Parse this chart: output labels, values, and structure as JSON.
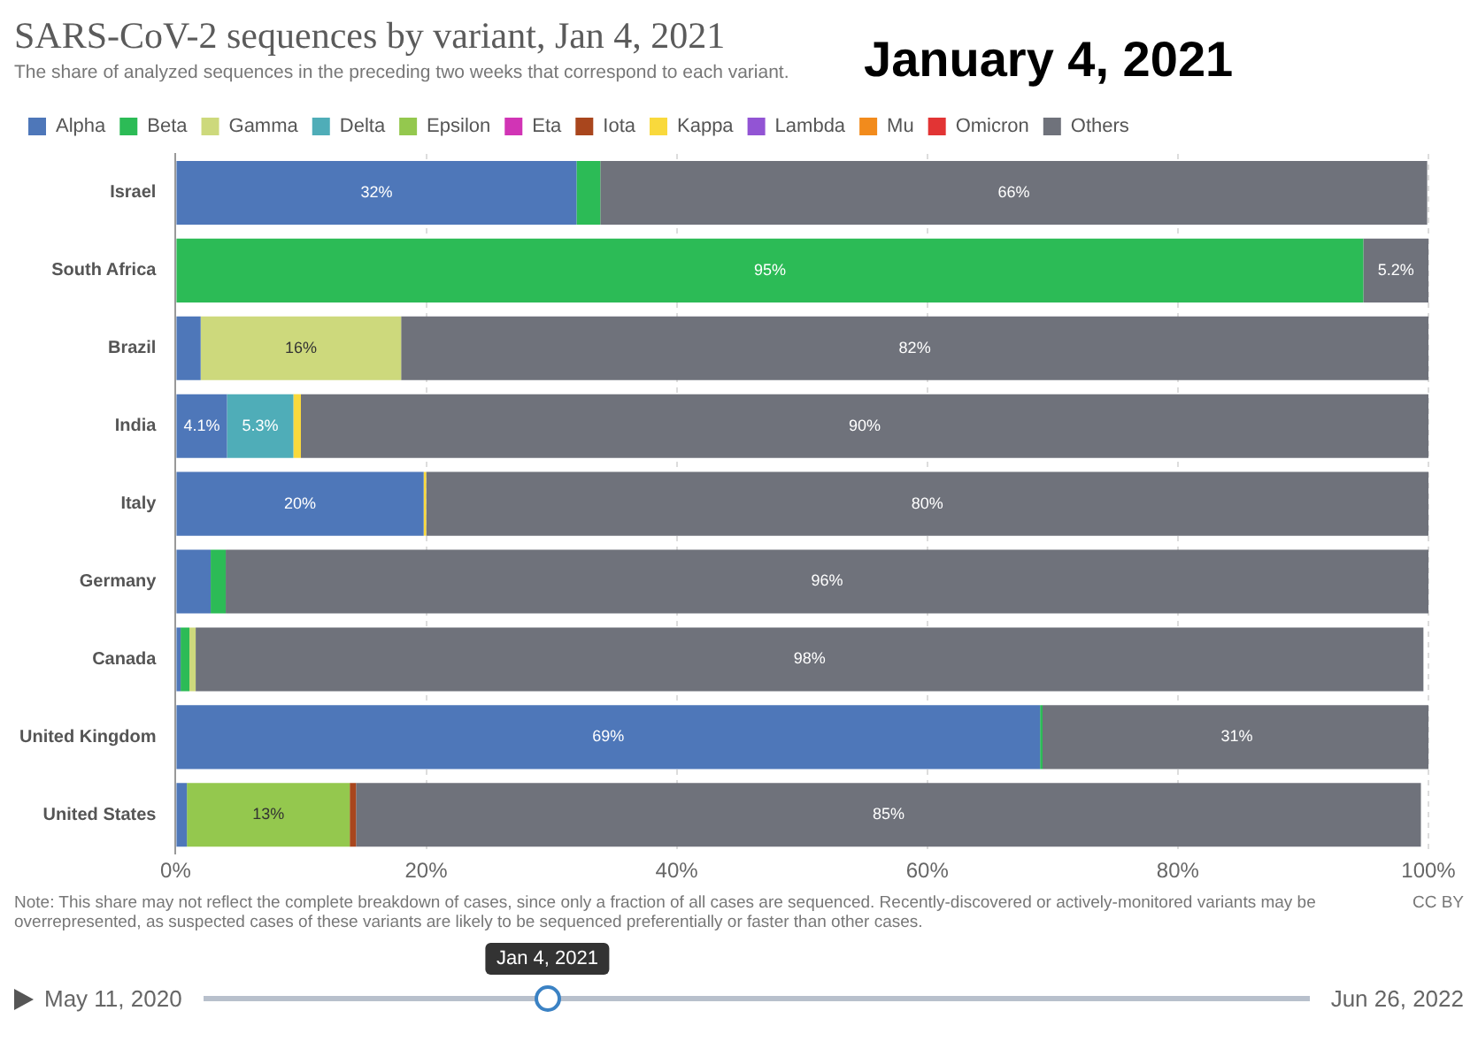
{
  "chart_data": {
    "type": "bar",
    "orientation": "horizontal",
    "stacked": true,
    "title": "SARS-CoV-2 sequences by variant, Jan 4, 2021",
    "subtitle": "The share of analyzed sequences in the preceding two weeks that correspond to each variant.",
    "categories": [
      "Israel",
      "South Africa",
      "Brazil",
      "India",
      "Italy",
      "Germany",
      "Canada",
      "United Kingdom",
      "United States"
    ],
    "series": [
      {
        "name": "Alpha",
        "color": "#4e77b9",
        "values": [
          32,
          null,
          2.0,
          4.1,
          19.8,
          2.8,
          0.4,
          69,
          0.9
        ],
        "value_labels": [
          "32%",
          null,
          null,
          "4.1%",
          "20%",
          null,
          null,
          "69%",
          null
        ]
      },
      {
        "name": "Beta",
        "color": "#2cbb56",
        "values": [
          1.9,
          94.8,
          null,
          null,
          null,
          1.2,
          0.7,
          0.2,
          null
        ],
        "value_labels": [
          null,
          "95%",
          null,
          null,
          null,
          null,
          null,
          null,
          null
        ]
      },
      {
        "name": "Gamma",
        "color": "#cdd97c",
        "values": [
          null,
          null,
          16,
          null,
          null,
          null,
          0.5,
          null,
          null
        ],
        "value_labels": [
          null,
          null,
          "16%",
          null,
          null,
          null,
          null,
          null,
          null
        ]
      },
      {
        "name": "Delta",
        "color": "#4fadb8",
        "values": [
          null,
          null,
          null,
          5.3,
          null,
          null,
          null,
          null,
          null
        ],
        "value_labels": [
          null,
          null,
          null,
          "5.3%",
          null,
          null,
          null,
          null,
          null
        ]
      },
      {
        "name": "Epsilon",
        "color": "#94c84e",
        "values": [
          null,
          null,
          null,
          null,
          null,
          null,
          null,
          null,
          13
        ],
        "value_labels": [
          null,
          null,
          null,
          null,
          null,
          null,
          null,
          null,
          "13%"
        ]
      },
      {
        "name": "Eta",
        "color": "#d134b5",
        "values": [
          null,
          null,
          null,
          null,
          null,
          null,
          null,
          null,
          null
        ]
      },
      {
        "name": "Iota",
        "color": "#a9461d",
        "values": [
          null,
          null,
          null,
          null,
          null,
          null,
          null,
          null,
          0.5
        ]
      },
      {
        "name": "Kappa",
        "color": "#f9d93c",
        "values": [
          null,
          null,
          null,
          0.6,
          0.2,
          null,
          null,
          null,
          null
        ]
      },
      {
        "name": "Lambda",
        "color": "#9254d4",
        "values": [
          null,
          null,
          null,
          null,
          null,
          null,
          null,
          null,
          null
        ]
      },
      {
        "name": "Mu",
        "color": "#f28b1c",
        "values": [
          null,
          null,
          null,
          null,
          null,
          null,
          null,
          null,
          null
        ]
      },
      {
        "name": "Omicron",
        "color": "#e23434",
        "values": [
          null,
          null,
          null,
          null,
          null,
          null,
          null,
          null,
          null
        ]
      },
      {
        "name": "Others",
        "color": "#6f727b",
        "values": [
          66,
          5.2,
          82,
          90,
          80,
          96,
          98,
          31,
          85
        ],
        "value_labels": [
          "66%",
          "5.2%",
          "82%",
          "90%",
          "80%",
          "96%",
          "98%",
          "31%",
          "85%"
        ]
      }
    ],
    "xlim": [
      0,
      100
    ],
    "xticks": [
      {
        "value": 0,
        "label": "0%"
      },
      {
        "value": 20,
        "label": "20%"
      },
      {
        "value": 40,
        "label": "40%"
      },
      {
        "value": 60,
        "label": "60%"
      },
      {
        "value": 80,
        "label": "80%"
      },
      {
        "value": 100,
        "label": "100%"
      }
    ],
    "grid": "x",
    "legend": "top left",
    "annotations": [
      "January 4, 2021",
      "Note: This share may not reflect the complete breakdown of cases, since only a fraction of all cases are sequenced. Recently-discovered or actively-monitored variants may be overrepresented, as suspected cases of these variants are likely to be sequenced preferentially or faster than other cases.",
      "CC BY",
      "May 11, 2020",
      "Jun 26, 2022",
      "Jan 4, 2021"
    ]
  }
}
